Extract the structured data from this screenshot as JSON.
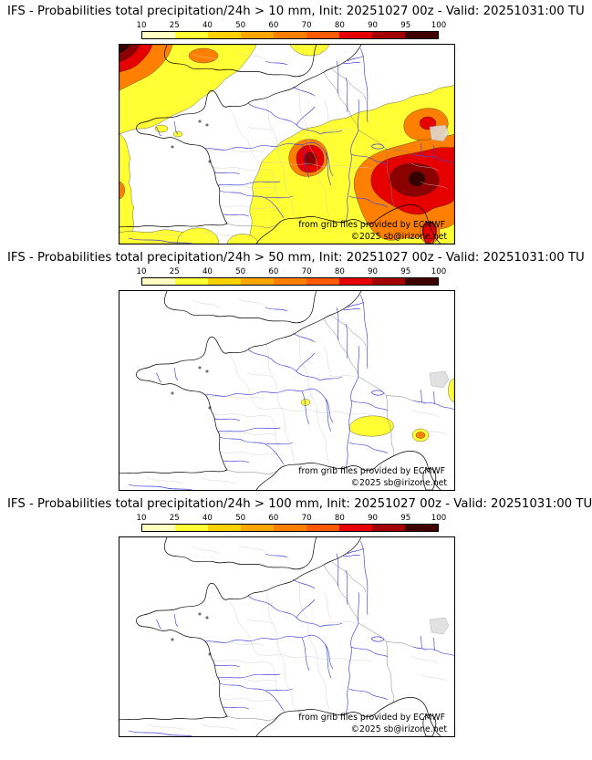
{
  "panels": [
    {
      "title": "IFS - Probabilities total precipitation/24h > 10 mm, Init: 20251027 00z - Valid: 20251031:00 TU"
    },
    {
      "title": "IFS - Probabilities total precipitation/24h > 50 mm, Init: 20251027 00z - Valid: 20251031:00 TU"
    },
    {
      "title": "IFS - Probabilities total precipitation/24h > 100 mm, Init: 20251027 00z - Valid: 20251031:00 TU"
    }
  ],
  "colorbar": {
    "ticks": [
      "10",
      "25",
      "40",
      "50",
      "60",
      "70",
      "80",
      "90",
      "95",
      "100"
    ],
    "colors": [
      "#ffffc2",
      "#ffff33",
      "#ffd100",
      "#ffa600",
      "#ff8000",
      "#ff5a00",
      "#e60000",
      "#a30000",
      "#400000"
    ]
  },
  "map_credits": {
    "provider": "from grib files provided by ECMWF",
    "copyright": "©2025 sb@irizone.net"
  },
  "map_colors": {
    "coast": "#000000",
    "rivers": "#4040d8",
    "country_borders": "#808080",
    "admin_borders": "#c8c8c8"
  }
}
